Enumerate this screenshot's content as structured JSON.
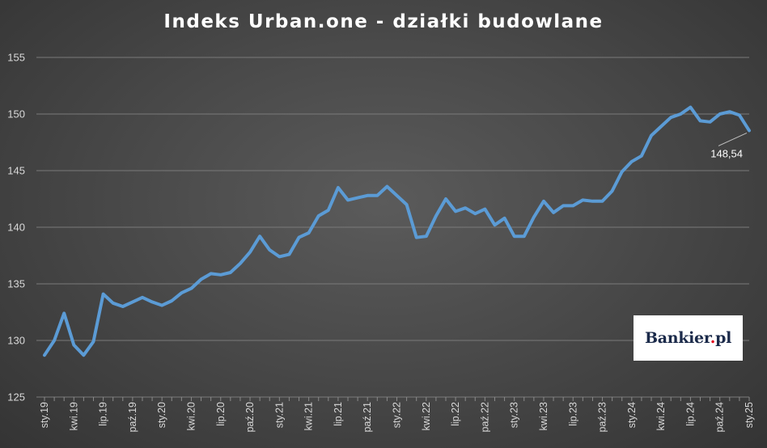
{
  "chart_data": {
    "type": "line",
    "title": "Indeks Urban.one - działki budowlane",
    "xlabel": "",
    "ylabel": "",
    "ylim": [
      125,
      155
    ],
    "yticks": [
      125,
      130,
      135,
      140,
      145,
      150,
      155
    ],
    "grid": "horizontal",
    "tick_labels": [
      "sty.19",
      "kwi.19",
      "lip.19",
      "paź.19",
      "sty.20",
      "kwi.20",
      "lip.20",
      "paź.20",
      "sty.21",
      "kwi.21",
      "lip.21",
      "paź.21",
      "sty.22",
      "kwi.22",
      "lip.22",
      "paź.22",
      "sty.23",
      "kwi.23",
      "lip.23",
      "paź.23",
      "sty.24",
      "kwi.24",
      "lip.24",
      "paź.24",
      "sty.25"
    ],
    "series": [
      {
        "color": "#5b9bd5",
        "values": [
          128.7,
          130.0,
          132.4,
          129.6,
          128.7,
          129.9,
          134.1,
          133.3,
          133.0,
          133.4,
          133.8,
          133.4,
          133.1,
          133.5,
          134.2,
          134.6,
          135.4,
          135.9,
          135.8,
          136.0,
          136.8,
          137.8,
          139.2,
          138.0,
          137.4,
          137.6,
          139.1,
          139.5,
          141.0,
          141.5,
          143.5,
          142.4,
          142.6,
          142.8,
          142.8,
          143.6,
          142.8,
          142.0,
          139.1,
          139.2,
          141.0,
          142.5,
          141.4,
          141.7,
          141.2,
          141.6,
          140.2,
          140.8,
          139.2,
          139.2,
          140.9,
          142.3,
          141.3,
          141.9,
          141.9,
          142.4,
          142.3,
          142.3,
          143.2,
          144.9,
          145.8,
          146.3,
          148.1,
          148.9,
          149.7,
          150.0,
          150.6,
          149.4,
          149.3,
          150.0,
          150.2,
          149.9,
          148.54
        ]
      }
    ],
    "annotation": "148,54"
  },
  "logo": {
    "text": "Bankier.pl",
    "dot_color": "#e2001a"
  }
}
